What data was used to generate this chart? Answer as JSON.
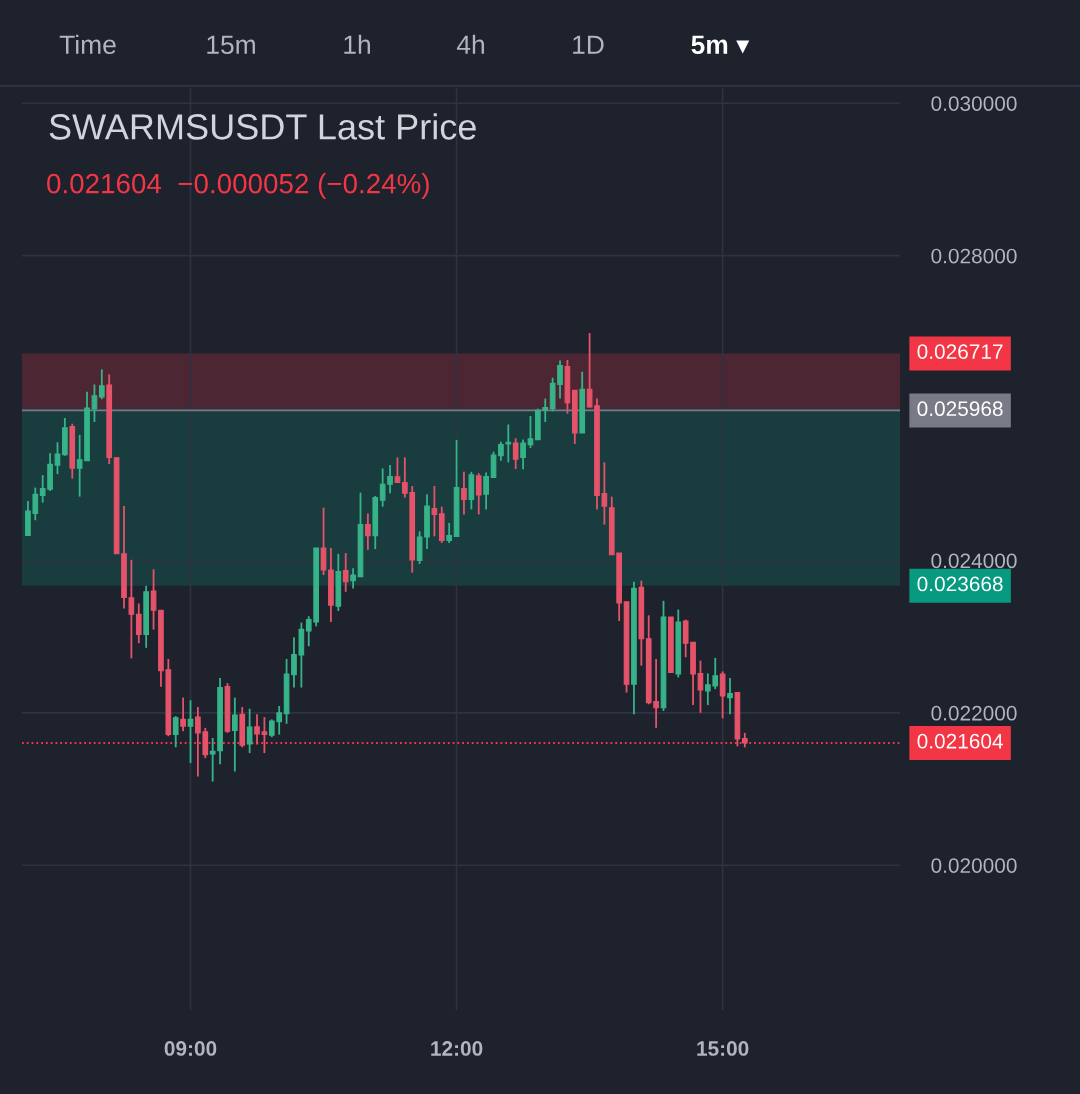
{
  "chart_data": {
    "type": "candlestick",
    "title": "SWARMSUSDT Last Price",
    "subtitle": "0.021604  −0.000052 (−0.24%)",
    "annotations": [
      "Time",
      "15m",
      "1h",
      "4h",
      "1D",
      "5m ▾"
    ],
    "x": [
      7.1667,
      7.25,
      7.3333,
      7.4167,
      7.5,
      7.5833,
      7.6667,
      7.75,
      7.8333,
      7.9167,
      8.0,
      8.0833,
      8.1667,
      8.25,
      8.3333,
      8.4167,
      8.5,
      8.5833,
      8.6667,
      8.75,
      8.8333,
      8.9167,
      9.0,
      9.0833,
      9.1667,
      9.25,
      9.3333,
      9.4167,
      9.5,
      9.5833,
      9.6667,
      9.75,
      9.8333,
      9.9167,
      10.0,
      10.0833,
      10.1667,
      10.25,
      10.3333,
      10.4167,
      10.5,
      10.5833,
      10.6667,
      10.75,
      10.8333,
      10.9167,
      11.0,
      11.0833,
      11.1667,
      11.25,
      11.3333,
      11.4167,
      11.5,
      11.5833,
      11.6667,
      11.75,
      11.8333,
      11.9167,
      12.0,
      12.0833,
      12.1667,
      12.25,
      12.3333,
      12.4167,
      12.5,
      12.5833,
      12.6667,
      12.75,
      12.8333,
      12.9167,
      13.0,
      13.0833,
      13.1667,
      13.25,
      13.3333,
      13.4167,
      13.5,
      13.5833,
      13.6667,
      13.75,
      13.8333,
      13.9167,
      14.0,
      14.0833,
      14.1667,
      14.25,
      14.3333,
      14.4167,
      14.5,
      14.5833,
      14.6667,
      14.75,
      14.8333,
      14.9167,
      15.0,
      15.0833,
      15.1667,
      15.25
    ],
    "ohlc": [
      [
        0.024329,
        0.024779,
        0.024329,
        0.024647
      ],
      [
        0.024616,
        0.024956,
        0.024528,
        0.024868
      ],
      [
        0.024854,
        0.025119,
        0.024758,
        0.024943
      ],
      [
        0.024934,
        0.025406,
        0.024911,
        0.02526
      ],
      [
        0.025251,
        0.025551,
        0.025132,
        0.025397
      ],
      [
        0.025387,
        0.025869,
        0.025374,
        0.025741
      ],
      [
        0.025758,
        0.025794,
        0.025075,
        0.025212
      ],
      [
        0.025212,
        0.025648,
        0.024837,
        0.025321
      ],
      [
        0.025308,
        0.026213,
        0.025308,
        0.026001
      ],
      [
        0.025992,
        0.026309,
        0.025816,
        0.02616
      ],
      [
        0.026147,
        0.026508,
        0.026115,
        0.026292
      ],
      [
        0.0263,
        0.026442,
        0.025264,
        0.025353
      ],
      [
        0.025348,
        0.025348,
        0.024087,
        0.024087
      ],
      [
        0.024087,
        0.024713,
        0.023369,
        0.023514
      ],
      [
        0.023509,
        0.024008,
        0.022715,
        0.023293
      ],
      [
        0.023293,
        0.023435,
        0.022914,
        0.023029
      ],
      [
        0.023029,
        0.023668,
        0.022853,
        0.023588
      ],
      [
        0.023598,
        0.023885,
        0.023091,
        0.023346
      ],
      [
        0.023346,
        0.023346,
        0.022341,
        0.022553
      ],
      [
        0.022566,
        0.022707,
        0.021693,
        0.021715
      ],
      [
        0.021715,
        0.021957,
        0.021547,
        0.021935
      ],
      [
        0.021914,
        0.0222,
        0.021759,
        0.021825
      ],
      [
        0.021825,
        0.022165,
        0.02134,
        0.021914
      ],
      [
        0.021944,
        0.022076,
        0.021164,
        0.021737
      ],
      [
        0.02175,
        0.021803,
        0.021406,
        0.021451
      ],
      [
        0.021459,
        0.02167,
        0.021098,
        0.021494
      ],
      [
        0.021504,
        0.022456,
        0.021326,
        0.022332
      ],
      [
        0.022345,
        0.02239,
        0.021737,
        0.021759
      ],
      [
        0.021768,
        0.0222,
        0.02123,
        0.021971
      ],
      [
        0.02198,
        0.022076,
        0.021547,
        0.021574
      ],
      [
        0.021591,
        0.022054,
        0.021472,
        0.021812
      ],
      [
        0.021816,
        0.02198,
        0.021583,
        0.021723
      ],
      [
        0.02175,
        0.021944,
        0.021472,
        0.021715
      ],
      [
        0.021706,
        0.021914,
        0.02168,
        0.021891
      ],
      [
        0.021882,
        0.02209,
        0.021715,
        0.022001
      ],
      [
        0.021988,
        0.022707,
        0.021856,
        0.022509
      ],
      [
        0.0225,
        0.022993,
        0.022332,
        0.022764
      ],
      [
        0.02276,
        0.023184,
        0.022332,
        0.023095
      ],
      [
        0.023073,
        0.023267,
        0.022874,
        0.023223
      ],
      [
        0.023192,
        0.024163,
        0.023135,
        0.024163
      ],
      [
        0.024163,
        0.024692,
        0.023809,
        0.023875
      ],
      [
        0.023875,
        0.024163,
        0.023192,
        0.023413
      ],
      [
        0.023399,
        0.024087,
        0.023337,
        0.023853
      ],
      [
        0.023866,
        0.024096,
        0.023588,
        0.023721
      ],
      [
        0.023734,
        0.023898,
        0.023633,
        0.023809
      ],
      [
        0.023787,
        0.02489,
        0.023787,
        0.024471
      ],
      [
        0.024471,
        0.024616,
        0.02414,
        0.024325
      ],
      [
        0.024325,
        0.024845,
        0.024149,
        0.024824
      ],
      [
        0.024792,
        0.025208,
        0.024705,
        0.025
      ],
      [
        0.025,
        0.025251,
        0.024881,
        0.025102
      ],
      [
        0.025096,
        0.025353,
        0.025022,
        0.025022
      ],
      [
        0.025022,
        0.025353,
        0.024824,
        0.024881
      ],
      [
        0.02489,
        0.024977,
        0.02384,
        0.024008
      ],
      [
        0.023999,
        0.024382,
        0.023955,
        0.024308
      ],
      [
        0.024308,
        0.024868,
        0.024149,
        0.024713
      ],
      [
        0.024682,
        0.024977,
        0.024316,
        0.024603
      ],
      [
        0.024612,
        0.024705,
        0.024229,
        0.024263
      ],
      [
        0.024263,
        0.024493,
        0.024229,
        0.024325
      ],
      [
        0.024316,
        0.025582,
        0.024308,
        0.024956
      ],
      [
        0.024943,
        0.025163,
        0.024603,
        0.024801
      ],
      [
        0.024801,
        0.025163,
        0.024669,
        0.025123
      ],
      [
        0.02511,
        0.025145,
        0.024603,
        0.024858
      ],
      [
        0.024868,
        0.025155,
        0.024669,
        0.025102
      ],
      [
        0.025089,
        0.025427,
        0.025089,
        0.025383
      ],
      [
        0.025374,
        0.025559,
        0.025308,
        0.02552
      ],
      [
        0.025529,
        0.025784,
        0.025287,
        0.025551
      ],
      [
        0.025542,
        0.025604,
        0.025198,
        0.02533
      ],
      [
        0.025353,
        0.025586,
        0.025198,
        0.025542
      ],
      [
        0.02552,
        0.025895,
        0.025476,
        0.025595
      ],
      [
        0.025586,
        0.025992,
        0.025586,
        0.02597
      ],
      [
        0.02597,
        0.026124,
        0.025816,
        0.026005
      ],
      [
        0.025992,
        0.026398,
        0.025956,
        0.026323
      ],
      [
        0.026309,
        0.026623,
        0.026124,
        0.026557
      ],
      [
        0.026544,
        0.026631,
        0.025926,
        0.026071
      ],
      [
        0.026234,
        0.026234,
        0.025529,
        0.025674
      ],
      [
        0.025674,
        0.026477,
        0.025674,
        0.026247
      ],
      [
        0.026247,
        0.026984,
        0.026005,
        0.026014
      ],
      [
        0.026028,
        0.026124,
        0.024669,
        0.024854
      ],
      [
        0.024877,
        0.025287,
        0.024471,
        0.024713
      ],
      [
        0.024692,
        0.024837,
        0.024074,
        0.024074
      ],
      [
        0.024096,
        0.024096,
        0.023205,
        0.023443
      ],
      [
        0.023456,
        0.023456,
        0.022266,
        0.022377
      ],
      [
        0.022377,
        0.023721,
        0.02198,
        0.023633
      ],
      [
        0.023647,
        0.023734,
        0.022619,
        0.022972
      ],
      [
        0.022972,
        0.02328,
        0.022112,
        0.022133
      ],
      [
        0.022147,
        0.022707,
        0.021803,
        0.022067
      ],
      [
        0.022067,
        0.02347,
        0.022024,
        0.023258
      ],
      [
        0.023258,
        0.023258,
        0.02253,
        0.02253
      ],
      [
        0.022509,
        0.023356,
        0.022464,
        0.023192
      ],
      [
        0.023205,
        0.023223,
        0.022729,
        0.022914
      ],
      [
        0.022927,
        0.022927,
        0.022103,
        0.022509
      ],
      [
        0.022517,
        0.022685,
        0.022001,
        0.022301
      ],
      [
        0.022288,
        0.022517,
        0.022103,
        0.022367
      ],
      [
        0.022354,
        0.022721,
        0.022311,
        0.022487
      ],
      [
        0.022509,
        0.022544,
        0.021927,
        0.022222
      ],
      [
        0.0222,
        0.022456,
        0.02198,
        0.022252
      ],
      [
        0.022266,
        0.022266,
        0.021561,
        0.021656
      ],
      [
        0.021662,
        0.021737,
        0.021547,
        0.021604
      ]
    ],
    "colors": [
      "#36b388",
      "#36b388",
      "#36b388",
      "#36b388",
      "#36b388",
      "#36b388",
      "#e5536a",
      "#36b388",
      "#36b388",
      "#36b388",
      "#36b388",
      "#e5536a",
      "#e5536a",
      "#e5536a",
      "#e5536a",
      "#e5536a",
      "#36b388",
      "#e5536a",
      "#e5536a",
      "#e5536a",
      "#36b388",
      "#e5536a",
      "#36b388",
      "#e5536a",
      "#e5536a",
      "#36b388",
      "#36b388",
      "#e5536a",
      "#36b388",
      "#e5536a",
      "#36b388",
      "#e5536a",
      "#e5536a",
      "#36b388",
      "#36b388",
      "#36b388",
      "#36b388",
      "#36b388",
      "#36b388",
      "#36b388",
      "#e5536a",
      "#e5536a",
      "#36b388",
      "#e5536a",
      "#36b388",
      "#36b388",
      "#e5536a",
      "#36b388",
      "#36b388",
      "#36b388",
      "#e5536a",
      "#e5536a",
      "#e5536a",
      "#36b388",
      "#36b388",
      "#e5536a",
      "#e5536a",
      "#36b388",
      "#36b388",
      "#e5536a",
      "#36b388",
      "#e5536a",
      "#36b388",
      "#36b388",
      "#36b388",
      "#36b388",
      "#e5536a",
      "#36b388",
      "#36b388",
      "#36b388",
      "#36b388",
      "#36b388",
      "#36b388",
      "#e5536a",
      "#e5536a",
      "#36b388",
      "#e5536a",
      "#e5536a",
      "#e5536a",
      "#e5536a",
      "#e5536a",
      "#e5536a",
      "#36b388",
      "#e5536a",
      "#e5536a",
      "#e5536a",
      "#36b388",
      "#e5536a",
      "#36b388",
      "#e5536a",
      "#e5536a",
      "#e5536a",
      "#36b388",
      "#36b388",
      "#e5536a",
      "#36b388",
      "#e5536a",
      "#e5536a"
    ],
    "xlim": [
      7.1,
      17.0
    ],
    "xticks": [
      {
        "value": 9,
        "label": "09:00"
      },
      {
        "value": 12,
        "label": "12:00"
      },
      {
        "value": 15,
        "label": "15:00"
      }
    ],
    "ylim": [
      0.0181,
      0.0302
    ],
    "yticks": [
      {
        "value": 0.02,
        "label": "0.020000"
      },
      {
        "value": 0.022,
        "label": "0.022000"
      },
      {
        "value": 0.024,
        "label": "0.024000"
      },
      {
        "value": 0.026,
        "label": null
      },
      {
        "value": 0.028,
        "label": "0.028000"
      },
      {
        "value": 0.03,
        "label": "0.030000"
      }
    ],
    "grid": true,
    "bands": [
      {
        "axis": "y",
        "from": 0.025968,
        "to": 0.026717,
        "label": "0.026717",
        "color": "#f23645"
      },
      {
        "axis": "y",
        "from": 0.025968,
        "to": 0.023668,
        "label": "0.023668",
        "color": "#089981"
      }
    ],
    "ref_lines": [
      {
        "axis": "y",
        "value": 0.025968,
        "label": "0.025968",
        "color": "#787b86",
        "line_style": "solid"
      },
      {
        "axis": "y",
        "value": 0.021604,
        "label": "0.021604",
        "color": "#f23645",
        "line_style": "dotted"
      }
    ]
  }
}
